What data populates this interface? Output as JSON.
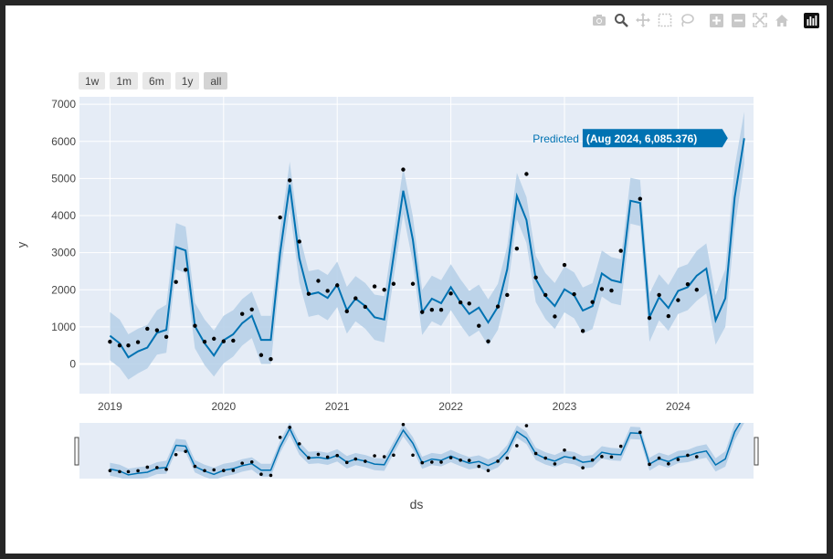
{
  "modebar": {
    "icons": [
      "camera-icon",
      "zoom-icon",
      "pan-icon",
      "box-select-icon",
      "lasso-icon",
      "zoom-in-icon",
      "zoom-out-icon",
      "autoscale-icon",
      "reset-axes-icon",
      "plotly-logo-icon"
    ]
  },
  "range_selector": {
    "buttons": [
      "1w",
      "1m",
      "6m",
      "1y",
      "all"
    ],
    "active": "all"
  },
  "hover": {
    "series": "Predicted",
    "label": "(Aug 2024, 6,085.376)"
  },
  "colors": {
    "plot_bg": "#e5ecf6",
    "line": "#0072b2",
    "band": "#b7d0e8",
    "points": "#000000",
    "hover_bg": "#0072b2"
  },
  "chart_data": {
    "type": "line",
    "title": "",
    "xlabel": "ds",
    "ylabel": "y",
    "xlim": [
      "2018-09-25",
      "2024-08-31"
    ],
    "ylim": [
      -800,
      7200
    ],
    "x_ticks": [
      "2019",
      "2020",
      "2021",
      "2022",
      "2023",
      "2024"
    ],
    "y_ticks": [
      0,
      1000,
      2000,
      3000,
      4000,
      5000,
      6000,
      7000
    ],
    "grid": true,
    "dates": [
      "2019-01",
      "2019-02",
      "2019-03",
      "2019-04",
      "2019-05",
      "2019-06",
      "2019-07",
      "2019-08",
      "2019-09",
      "2019-10",
      "2019-11",
      "2019-12",
      "2020-01",
      "2020-02",
      "2020-03",
      "2020-04",
      "2020-05",
      "2020-06",
      "2020-07",
      "2020-08",
      "2020-09",
      "2020-10",
      "2020-11",
      "2020-12",
      "2021-01",
      "2021-02",
      "2021-03",
      "2021-04",
      "2021-05",
      "2021-06",
      "2021-07",
      "2021-08",
      "2021-09",
      "2021-10",
      "2021-11",
      "2021-12",
      "2022-01",
      "2022-02",
      "2022-03",
      "2022-04",
      "2022-05",
      "2022-06",
      "2022-07",
      "2022-08",
      "2022-09",
      "2022-10",
      "2022-11",
      "2022-12",
      "2023-01",
      "2023-02",
      "2023-03",
      "2023-04",
      "2023-05",
      "2023-06",
      "2023-07",
      "2023-08",
      "2023-09",
      "2023-10",
      "2023-11",
      "2023-12",
      "2024-01",
      "2024-02",
      "2024-03",
      "2024-04",
      "2024-05",
      "2024-06",
      "2024-07",
      "2024-08"
    ],
    "series": [
      {
        "name": "Predicted",
        "values": [
          760,
          560,
          180,
          340,
          440,
          840,
          920,
          3150,
          3060,
          1020,
          560,
          230,
          640,
          800,
          1100,
          1300,
          650,
          650,
          3000,
          4830,
          2850,
          1870,
          1930,
          1780,
          2140,
          1450,
          1760,
          1560,
          1260,
          1200,
          2900,
          4670,
          3350,
          1390,
          1760,
          1640,
          2070,
          1660,
          1350,
          1520,
          1120,
          1540,
          2550,
          4530,
          3880,
          2290,
          1830,
          1560,
          2010,
          1850,
          1440,
          1560,
          2440,
          2260,
          2200,
          4400,
          4340,
          1260,
          1800,
          1510,
          1970,
          2070,
          2380,
          2570,
          1180,
          1770,
          4480,
          6085
        ]
      },
      {
        "name": "Lower",
        "values": [
          100,
          -100,
          -420,
          -250,
          -120,
          250,
          300,
          2550,
          2450,
          420,
          -30,
          -340,
          20,
          200,
          500,
          700,
          0,
          0,
          2400,
          4200,
          2200,
          1270,
          1330,
          1180,
          1530,
          820,
          1150,
          950,
          650,
          580,
          2300,
          4050,
          2730,
          780,
          1150,
          1030,
          1450,
          1050,
          730,
          900,
          500,
          920,
          1930,
          3900,
          3260,
          1670,
          1210,
          940,
          1390,
          1230,
          820,
          940,
          1820,
          1640,
          1580,
          3780,
          3720,
          600,
          1180,
          890,
          1350,
          1450,
          1700,
          1900,
          520,
          1000,
          3650,
          5400
        ]
      },
      {
        "name": "Upper",
        "values": [
          1400,
          1200,
          800,
          950,
          1050,
          1450,
          1600,
          3800,
          3700,
          1650,
          1200,
          900,
          1300,
          1450,
          1750,
          1950,
          1300,
          1300,
          3600,
          5450,
          3500,
          2500,
          2550,
          2400,
          2760,
          2080,
          2370,
          2180,
          1870,
          1830,
          3500,
          5300,
          3980,
          2000,
          2380,
          2260,
          2690,
          2280,
          1970,
          2140,
          1740,
          2160,
          3170,
          5150,
          4500,
          2910,
          2450,
          2180,
          2630,
          2470,
          2060,
          2180,
          3060,
          2880,
          2820,
          5020,
          4960,
          1900,
          2420,
          2130,
          2590,
          2690,
          3050,
          3250,
          1850,
          2550,
          5300,
          6800
        ]
      },
      {
        "name": "Actual",
        "values": [
          600,
          500,
          500,
          590,
          950,
          910,
          730,
          2210,
          2540,
          1030,
          600,
          680,
          610,
          630,
          1350,
          1470,
          240,
          130,
          3950,
          4950,
          3300,
          1890,
          2240,
          1970,
          2120,
          1420,
          1770,
          1540,
          2090,
          2000,
          2160,
          5240,
          2160,
          1400,
          1460,
          1460,
          1900,
          1660,
          1630,
          1030,
          610,
          1550,
          1860,
          3110,
          5120,
          2330,
          1860,
          1280,
          2670,
          1880,
          890,
          1670,
          2020,
          1980,
          3050,
          null,
          4450,
          1240,
          1860,
          1290,
          1720,
          2150,
          2000,
          null,
          null,
          null,
          null,
          null
        ]
      }
    ]
  }
}
